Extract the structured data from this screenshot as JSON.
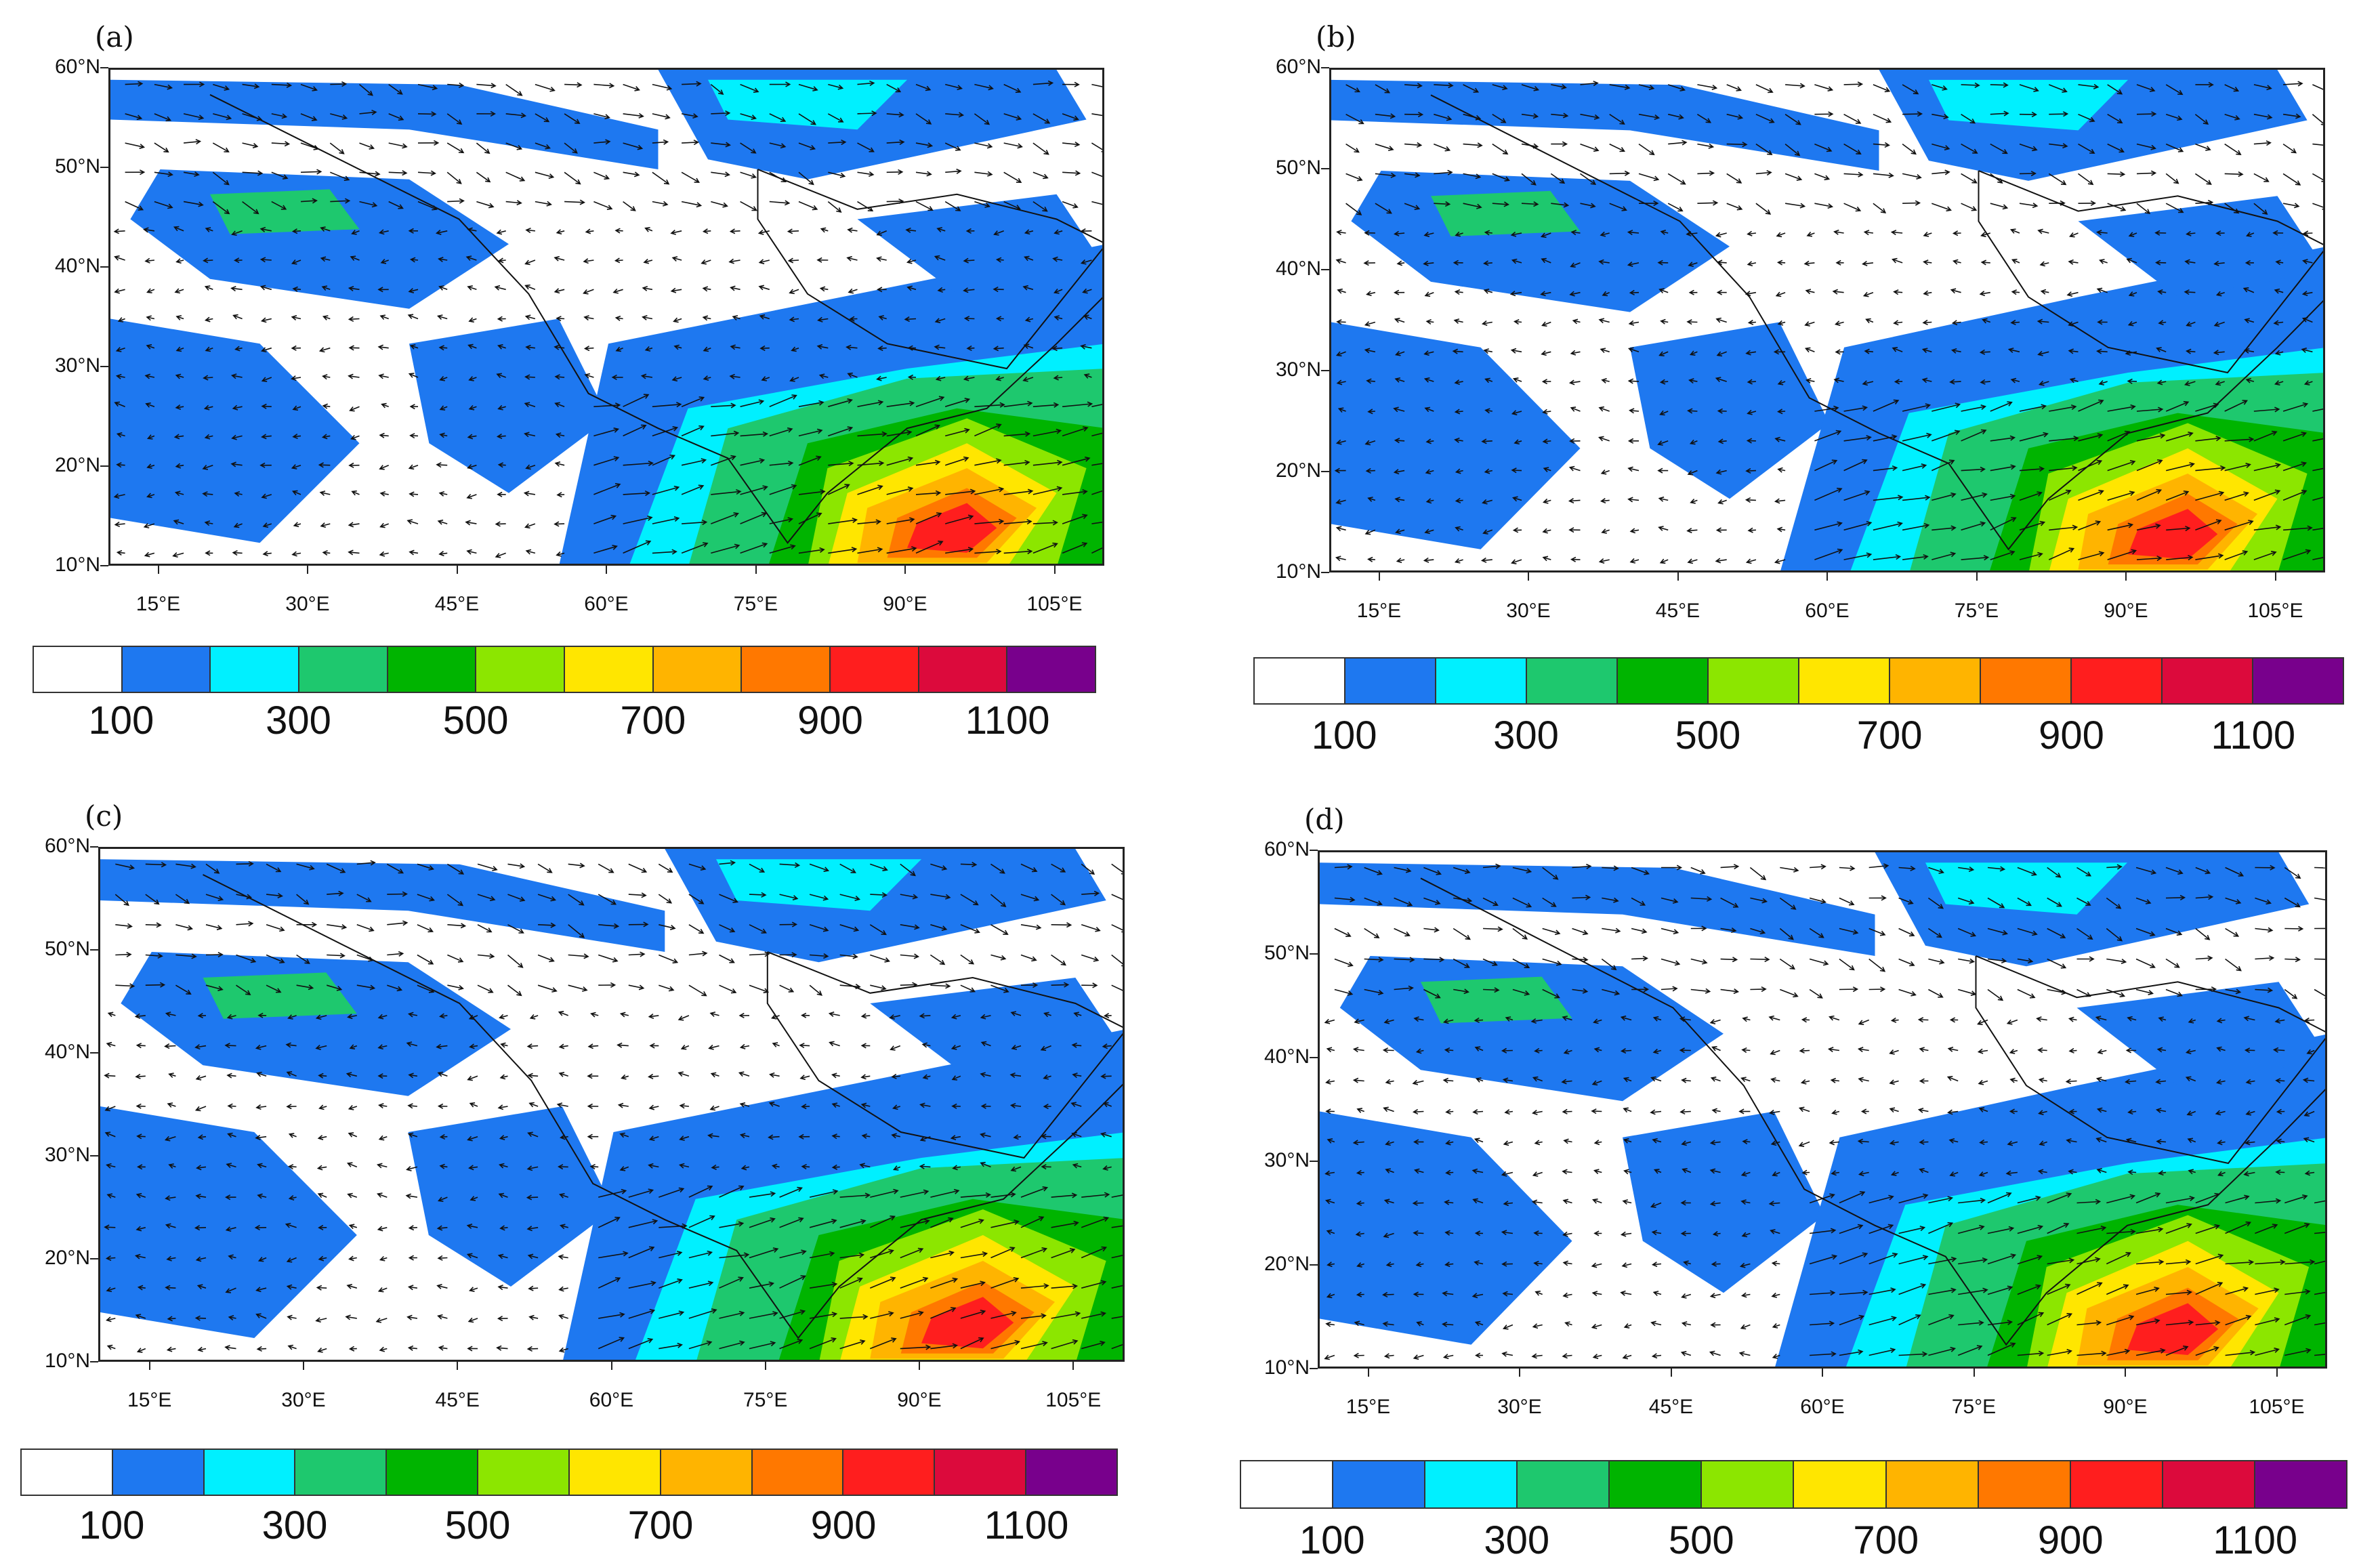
{
  "legend": {
    "colors": [
      "#ffffff",
      "#1e78f0",
      "#00f0ff",
      "#1ec86e",
      "#00b400",
      "#8ce600",
      "#ffe600",
      "#ffb400",
      "#ff7800",
      "#ff1e1e",
      "#dc0a3c",
      "#78008c"
    ],
    "labels": [
      "100",
      "300",
      "500",
      "700",
      "900",
      "1100"
    ]
  },
  "axes": {
    "lat_labels": [
      "60°N",
      "50°N",
      "40°N",
      "30°N",
      "20°N",
      "10°N"
    ],
    "lon_labels": [
      "15°E",
      "30°E",
      "45°E",
      "60°E",
      "75°E",
      "90°E",
      "105°E"
    ]
  },
  "panels": [
    {
      "label": "(a)"
    },
    {
      "label": "(b)"
    },
    {
      "label": "(c)"
    },
    {
      "label": "(d)"
    }
  ]
}
